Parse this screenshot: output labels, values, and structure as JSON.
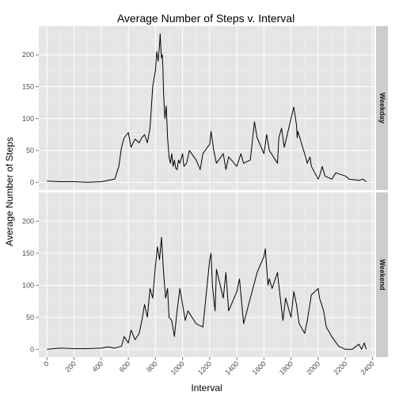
{
  "chart_data": {
    "type": "line",
    "title": "Average Number of Steps v. Interval",
    "xlabel": "Interval",
    "ylabel": "Average Number of Steps",
    "xlim": [
      -60,
      2415
    ],
    "ylim": [
      -12,
      245
    ],
    "xticks": [
      0,
      200,
      400,
      600,
      800,
      1000,
      1200,
      1400,
      1600,
      1800,
      2000,
      2200,
      2400
    ],
    "yticks": [
      0,
      50,
      100,
      150,
      200
    ],
    "grid": true,
    "facets": [
      {
        "name": "Weekday",
        "x": [
          0,
          100,
          200,
          300,
          400,
          450,
          500,
          530,
          550,
          570,
          600,
          620,
          650,
          680,
          700,
          720,
          740,
          760,
          780,
          800,
          810,
          820,
          830,
          835,
          840,
          845,
          850,
          855,
          860,
          870,
          880,
          890,
          900,
          910,
          920,
          930,
          940,
          950,
          960,
          970,
          980,
          1000,
          1010,
          1030,
          1050,
          1100,
          1130,
          1150,
          1200,
          1210,
          1230,
          1250,
          1300,
          1320,
          1340,
          1400,
          1430,
          1450,
          1500,
          1530,
          1550,
          1600,
          1620,
          1640,
          1700,
          1710,
          1730,
          1750,
          1800,
          1820,
          1840,
          1845,
          1850,
          1900,
          1920,
          1940,
          1950,
          2000,
          2010,
          2030,
          2050,
          2100,
          2130,
          2200,
          2230,
          2300,
          2330,
          2355
        ],
        "y": [
          2,
          1,
          1,
          0,
          1,
          3,
          5,
          25,
          55,
          70,
          78,
          55,
          68,
          62,
          70,
          75,
          62,
          85,
          150,
          175,
          205,
          190,
          215,
          233,
          210,
          195,
          200,
          180,
          140,
          100,
          120,
          70,
          40,
          30,
          45,
          25,
          35,
          22,
          20,
          35,
          30,
          45,
          25,
          30,
          50,
          35,
          20,
          45,
          60,
          80,
          50,
          30,
          45,
          20,
          40,
          25,
          45,
          30,
          35,
          95,
          70,
          45,
          75,
          50,
          30,
          70,
          85,
          55,
          100,
          118,
          90,
          70,
          80,
          45,
          30,
          40,
          25,
          5,
          10,
          25,
          10,
          5,
          15,
          10,
          5,
          3,
          5,
          1
        ]
      },
      {
        "name": "Weekend",
        "x": [
          0,
          100,
          200,
          300,
          400,
          450,
          500,
          550,
          570,
          600,
          620,
          650,
          680,
          700,
          720,
          740,
          760,
          780,
          800,
          815,
          830,
          845,
          860,
          875,
          890,
          900,
          920,
          940,
          960,
          980,
          1000,
          1020,
          1040,
          1100,
          1150,
          1200,
          1210,
          1220,
          1240,
          1250,
          1300,
          1320,
          1340,
          1400,
          1420,
          1450,
          1500,
          1550,
          1600,
          1610,
          1630,
          1640,
          1660,
          1700,
          1710,
          1740,
          1760,
          1800,
          1820,
          1840,
          1860,
          1900,
          1920,
          1950,
          2000,
          2010,
          2040,
          2060,
          2100,
          2150,
          2200,
          2250,
          2300,
          2320,
          2340,
          2355
        ],
        "y": [
          0,
          2,
          1,
          1,
          2,
          4,
          2,
          5,
          20,
          10,
          30,
          15,
          25,
          45,
          70,
          50,
          95,
          80,
          130,
          160,
          140,
          175,
          120,
          80,
          95,
          50,
          45,
          20,
          60,
          95,
          70,
          45,
          60,
          40,
          35,
          140,
          150,
          100,
          60,
          125,
          80,
          120,
          60,
          90,
          110,
          40,
          80,
          120,
          145,
          157,
          100,
          110,
          95,
          120,
          100,
          45,
          80,
          50,
          90,
          70,
          40,
          25,
          45,
          85,
          95,
          80,
          60,
          35,
          20,
          5,
          0,
          0,
          8,
          0,
          10,
          0
        ]
      }
    ]
  }
}
